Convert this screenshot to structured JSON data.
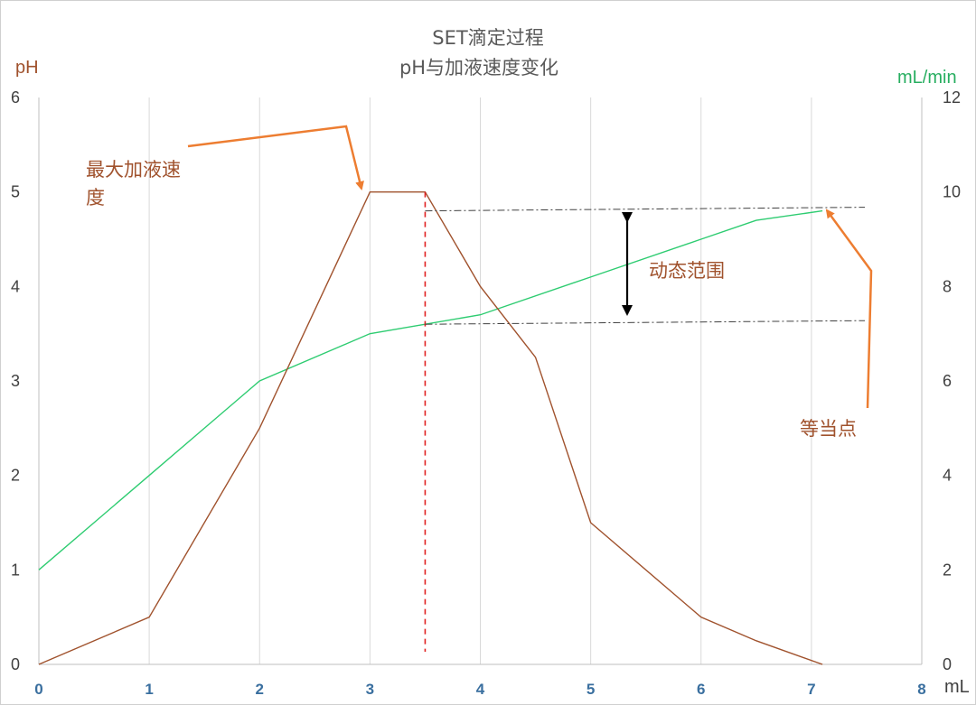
{
  "chart_data": {
    "type": "line",
    "title": "SET滴定过程",
    "subtitle": "pH与加液速度变化",
    "x_unit": "mL",
    "y_left_unit": "pH",
    "y_right_unit": "mL/min",
    "xlim": [
      0,
      8
    ],
    "ylim_left": [
      0,
      6
    ],
    "ylim_right": [
      0,
      12
    ],
    "x_ticks": [
      "0",
      "1",
      "2",
      "3",
      "4",
      "5",
      "6",
      "7",
      "8"
    ],
    "y_left_ticks": [
      "0",
      "1",
      "2",
      "3",
      "4",
      "5",
      "6"
    ],
    "y_right_ticks": [
      "0",
      "2",
      "4",
      "6",
      "8",
      "10",
      "12"
    ],
    "grid": "vertical",
    "series": [
      {
        "axis": "left",
        "color": "#2ecc71",
        "x": [
          0,
          1,
          2,
          3,
          4,
          5,
          6,
          6.5,
          7.1
        ],
        "y": [
          1.0,
          2.0,
          3.0,
          3.5,
          3.7,
          4.1,
          4.5,
          4.7,
          4.8
        ]
      },
      {
        "axis": "right",
        "color": "#a0522d",
        "x": [
          0,
          1,
          2,
          3,
          3.5,
          4,
          4.5,
          5,
          6,
          6.5,
          7.1
        ],
        "y": [
          0,
          1,
          5,
          10,
          10,
          8,
          6.5,
          3,
          1,
          0.5,
          0
        ]
      }
    ],
    "annotations": {
      "max_rate": "最大加液速度",
      "dynamic_range": "动态范围",
      "equivalence_point": "等当点"
    },
    "marker_x": 3.5,
    "range_top_ph": 4.8,
    "range_bottom_ph": 3.6,
    "arrow_color": "#ed7d31",
    "marker_color": "#e02020"
  }
}
